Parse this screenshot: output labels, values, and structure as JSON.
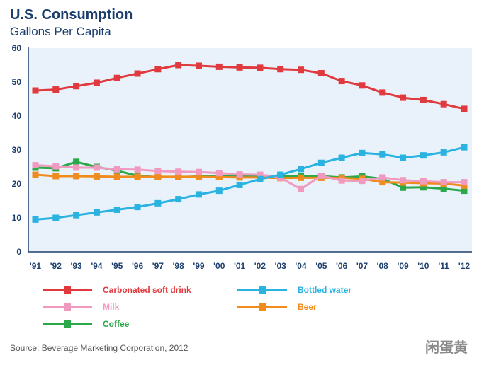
{
  "chart_data": {
    "type": "line",
    "title": "U.S. Consumption",
    "subtitle": "Gallons Per Capita",
    "categories": [
      "'91",
      "'92",
      "'93",
      "'94",
      "'95",
      "'96",
      "'97",
      "'98",
      "'99",
      "'00",
      "'01",
      "'02",
      "'03",
      "'04",
      "'05",
      "'06",
      "'07",
      "'08",
      "'09",
      "'10",
      "'11",
      "'12"
    ],
    "y_ticks": [
      "0",
      "10",
      "20",
      "30",
      "40",
      "50",
      "60"
    ],
    "ylim": [
      0,
      60
    ],
    "xlabel": "",
    "ylabel": "",
    "grid": false,
    "legend_position": "bottom",
    "series": [
      {
        "name": "Carbonated soft drink",
        "color": "#e03a3e",
        "values": [
          47.5,
          47.8,
          48.8,
          49.8,
          51.2,
          52.5,
          53.8,
          55.0,
          54.8,
          54.5,
          54.3,
          54.2,
          53.8,
          53.6,
          52.6,
          50.3,
          49.0,
          46.9,
          45.4,
          44.7,
          43.5,
          42.1
        ]
      },
      {
        "name": "Bottled water",
        "color": "#2ab3e0",
        "values": [
          9.5,
          10.0,
          10.8,
          11.6,
          12.4,
          13.2,
          14.3,
          15.5,
          16.9,
          18.0,
          19.7,
          21.4,
          22.7,
          24.4,
          26.2,
          27.7,
          29.1,
          28.7,
          27.7,
          28.4,
          29.3,
          30.8
        ]
      },
      {
        "name": "Milk",
        "color": "#f09ac0",
        "values": [
          25.5,
          25.2,
          24.8,
          24.8,
          24.3,
          24.2,
          23.8,
          23.6,
          23.5,
          23.2,
          22.8,
          22.7,
          21.8,
          18.5,
          22.4,
          21.0,
          20.9,
          21.9,
          21.1,
          20.8,
          20.5,
          20.5
        ]
      },
      {
        "name": "Beer",
        "color": "#f08c1e",
        "values": [
          22.7,
          22.3,
          22.3,
          22.2,
          22.1,
          22.1,
          22.1,
          22.1,
          22.1,
          22.0,
          21.9,
          21.9,
          21.7,
          21.8,
          21.8,
          21.8,
          21.5,
          20.5,
          20.4,
          20.2,
          20.1,
          19.5
        ]
      },
      {
        "name": "Coffee",
        "color": "#2aa84a",
        "values": [
          24.8,
          24.6,
          26.5,
          25.0,
          23.9,
          22.4,
          22.0,
          22.0,
          22.2,
          22.3,
          22.4,
          22.5,
          22.3,
          22.2,
          22.3,
          21.9,
          22.2,
          21.5,
          18.9,
          19.0,
          18.6,
          18.0
        ]
      }
    ],
    "legend_order": [
      "Carbonated soft drink",
      "Bottled water",
      "Milk",
      "Beer",
      "Coffee"
    ],
    "source": "Source: Beverage Marketing Corporation, 2012"
  },
  "watermark": "闲蛋黄",
  "colors": {
    "title": "#1d3f6e",
    "plot_background": "#e9f2fb",
    "axis": "#1d3f6e"
  }
}
